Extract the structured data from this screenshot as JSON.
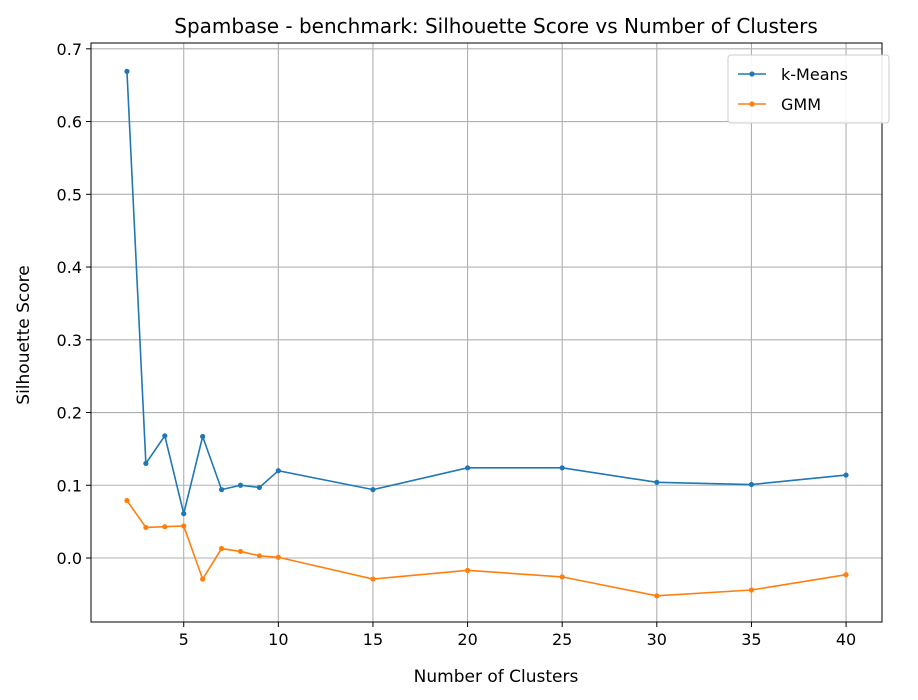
{
  "chart_data": {
    "type": "line",
    "title": "Spambase - benchmark: Silhouette Score vs Number of Clusters",
    "xlabel": "Number of Clusters",
    "ylabel": "Silhouette Score",
    "x": [
      2,
      3,
      4,
      5,
      6,
      7,
      8,
      9,
      10,
      15,
      20,
      25,
      30,
      35,
      40
    ],
    "xlim": [
      0.1,
      41.9
    ],
    "ylim": [
      -0.088,
      0.708
    ],
    "xticks": [
      5,
      10,
      15,
      20,
      25,
      30,
      35,
      40
    ],
    "xtick_labels": [
      "5",
      "10",
      "15",
      "20",
      "25",
      "30",
      "35",
      "40"
    ],
    "yticks": [
      0.0,
      0.1,
      0.2,
      0.3,
      0.4,
      0.5,
      0.6,
      0.7
    ],
    "ytick_labels": [
      "0.0",
      "0.1",
      "0.2",
      "0.3",
      "0.4",
      "0.5",
      "0.6",
      "0.7"
    ],
    "grid": true,
    "legend_position": "top-right",
    "series": [
      {
        "name": "k-Means",
        "color": "#1f77b4",
        "values": [
          0.669,
          0.13,
          0.168,
          0.061,
          0.167,
          0.094,
          0.1,
          0.097,
          0.12,
          0.094,
          0.124,
          0.124,
          0.104,
          0.101,
          0.114
        ]
      },
      {
        "name": "GMM",
        "color": "#ff7f0e",
        "values": [
          0.079,
          0.042,
          0.043,
          0.044,
          -0.029,
          0.013,
          0.009,
          0.003,
          0.001,
          -0.029,
          -0.017,
          -0.026,
          -0.052,
          -0.044,
          -0.023
        ]
      }
    ]
  }
}
